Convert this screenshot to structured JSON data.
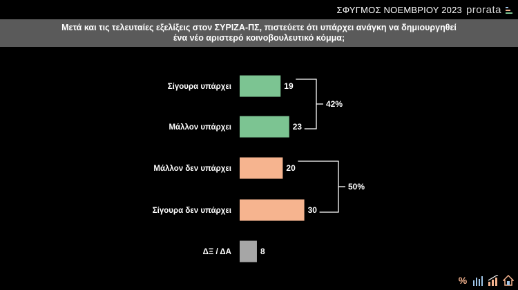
{
  "header": {
    "survey_name": "ΣΦΥΓΜΟΣ",
    "survey_month": "ΝΟΕΜΒΡΙΟΥ 2023",
    "logo_text": "prorata"
  },
  "question": "Μετά και τις τελευταίες εξελίξεις στον ΣΥΡΙΖΑ-ΠΣ, πιστεύετε ότι υπάρχει ανάγκη να δημιουργηθεί\nένα νέο αριστερό κοινοβουλευτικό κόμμα;",
  "chart_data": {
    "type": "bar",
    "orientation": "horizontal",
    "categories": [
      "Σίγουρα υπάρχει",
      "Μάλλον υπάρχει",
      "Μάλλον δεν υπάρχει",
      "Σίγουρα δεν υπάρχει",
      "ΔΞ / ΔΑ"
    ],
    "values": [
      19,
      23,
      20,
      30,
      8
    ],
    "colors": [
      "#7cc492",
      "#7cc492",
      "#f6b48f",
      "#f6b48f",
      "#a6a6a6"
    ],
    "groups": [
      {
        "label": "42%",
        "from": 0,
        "to": 1
      },
      {
        "label": "50%",
        "from": 2,
        "to": 3
      }
    ],
    "title": "",
    "xlabel": "",
    "ylabel": "",
    "grid": false,
    "legend": "none"
  },
  "footer_icons": [
    "percent-icon",
    "bar-chart-icon",
    "trend-chart-icon",
    "home-icon"
  ]
}
